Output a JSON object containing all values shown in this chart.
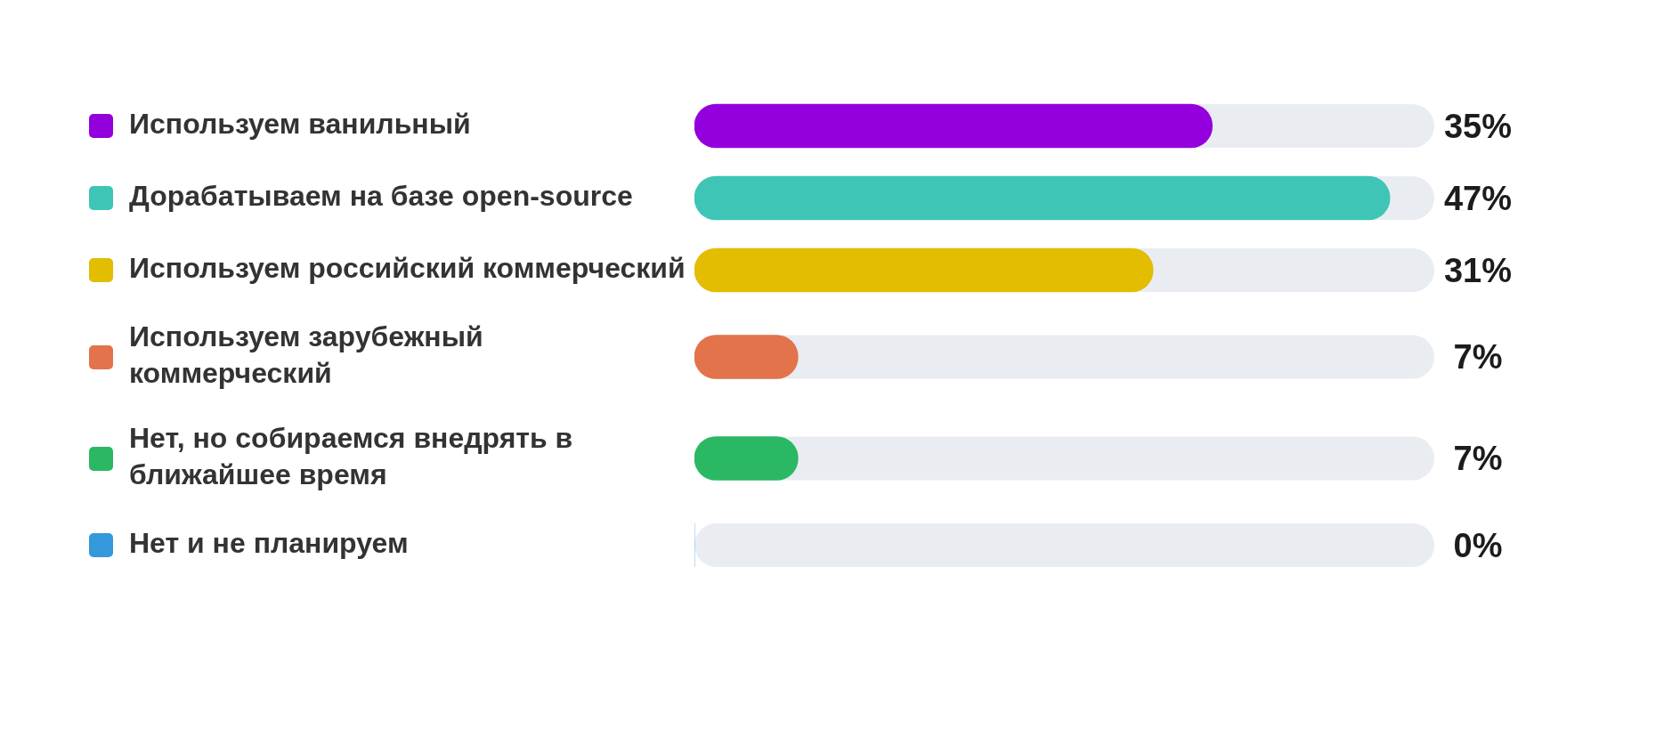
{
  "chart_data": {
    "type": "bar",
    "orientation": "horizontal",
    "categories": [
      "Используем ванильный",
      "Дорабатываем на базе open-source",
      "Используем российский коммерческий",
      "Используем зарубежный коммерческий",
      "Нет, но собираемся внедрять в ближайшее время",
      "Нет и не планируем"
    ],
    "values": [
      35,
      47,
      31,
      7,
      7,
      0
    ],
    "colors": [
      "#9400dd",
      "#3ec5b5",
      "#e2bd00",
      "#e2734b",
      "#2bb864",
      "#3498db"
    ],
    "value_labels": [
      "35%",
      "47%",
      "31%",
      "7%",
      "7%",
      "0%"
    ],
    "xlim": [
      0,
      50
    ],
    "tick_labels": "y"
  }
}
